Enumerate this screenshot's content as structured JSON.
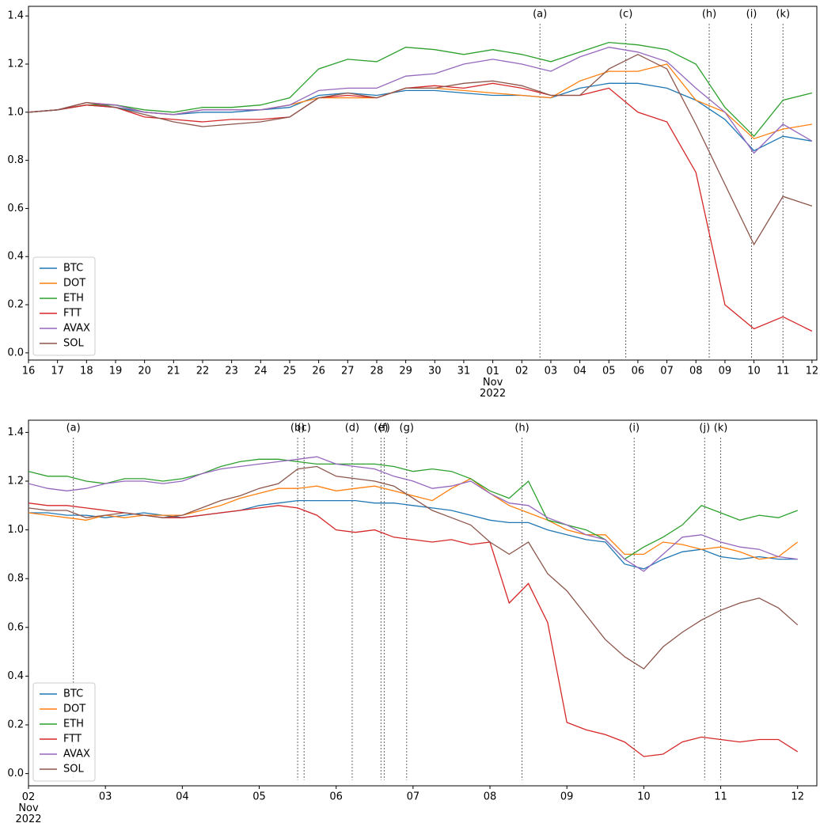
{
  "chart_data": [
    {
      "type": "line",
      "legend": "lower left",
      "x": [
        "2022-10-16",
        "2022-10-17",
        "2022-10-18",
        "2022-10-19",
        "2022-10-20",
        "2022-10-21",
        "2022-10-22",
        "2022-10-23",
        "2022-10-24",
        "2022-10-25",
        "2022-10-26",
        "2022-10-27",
        "2022-10-28",
        "2022-10-29",
        "2022-10-30",
        "2022-10-31",
        "2022-11-01",
        "2022-11-02",
        "2022-11-03",
        "2022-11-04",
        "2022-11-05",
        "2022-11-06",
        "2022-11-07",
        "2022-11-08",
        "2022-11-09",
        "2022-11-10",
        "2022-11-11",
        "2022-11-12"
      ],
      "series": [
        {
          "name": "BTC",
          "color": "#1f77b4",
          "values": [
            1.0,
            1.01,
            1.03,
            1.02,
            1.0,
            0.99,
            1.0,
            1.0,
            1.01,
            1.02,
            1.07,
            1.08,
            1.07,
            1.09,
            1.09,
            1.08,
            1.07,
            1.07,
            1.06,
            1.1,
            1.12,
            1.12,
            1.1,
            1.05,
            0.97,
            0.84,
            0.9,
            0.88
          ]
        },
        {
          "name": "DOT",
          "color": "#ff7f0e",
          "values": [
            1.0,
            1.01,
            1.04,
            1.03,
            1.0,
            0.99,
            1.01,
            1.01,
            1.01,
            1.03,
            1.06,
            1.06,
            1.06,
            1.1,
            1.1,
            1.09,
            1.08,
            1.07,
            1.06,
            1.13,
            1.17,
            1.17,
            1.2,
            1.05,
            1.0,
            0.89,
            0.93,
            0.95
          ]
        },
        {
          "name": "ETH",
          "color": "#2ca02c",
          "values": [
            1.0,
            1.01,
            1.03,
            1.03,
            1.01,
            1.0,
            1.02,
            1.02,
            1.03,
            1.06,
            1.18,
            1.22,
            1.21,
            1.27,
            1.26,
            1.24,
            1.26,
            1.24,
            1.21,
            1.25,
            1.29,
            1.28,
            1.26,
            1.2,
            1.02,
            0.9,
            1.05,
            1.08
          ]
        },
        {
          "name": "FTT",
          "color": "#d62728",
          "values": [
            1.0,
            1.01,
            1.03,
            1.02,
            0.98,
            0.97,
            0.96,
            0.97,
            0.97,
            0.98,
            1.06,
            1.07,
            1.06,
            1.1,
            1.11,
            1.1,
            1.12,
            1.1,
            1.07,
            1.07,
            1.1,
            1.0,
            0.96,
            0.75,
            0.2,
            0.1,
            0.15,
            0.09
          ]
        },
        {
          "name": "AVAX",
          "color": "#9467bd",
          "values": [
            1.0,
            1.01,
            1.04,
            1.03,
            1.0,
            0.99,
            1.01,
            1.01,
            1.01,
            1.03,
            1.09,
            1.1,
            1.1,
            1.15,
            1.16,
            1.2,
            1.22,
            1.2,
            1.17,
            1.23,
            1.27,
            1.25,
            1.21,
            1.1,
            1.0,
            0.83,
            0.95,
            0.88
          ]
        },
        {
          "name": "SOL",
          "color": "#8c564b",
          "values": [
            1.0,
            1.01,
            1.04,
            1.02,
            0.99,
            0.96,
            0.94,
            0.95,
            0.96,
            0.98,
            1.06,
            1.08,
            1.06,
            1.1,
            1.1,
            1.12,
            1.13,
            1.11,
            1.07,
            1.07,
            1.18,
            1.24,
            1.18,
            0.95,
            0.7,
            0.45,
            0.65,
            0.61
          ]
        }
      ],
      "xlim": [
        "2022-10-16 00:00",
        "2022-11-12 04:00"
      ],
      "ylim": [
        -0.03,
        1.44
      ],
      "yticks": [
        {
          "value": 0,
          "label": "0.0"
        },
        0.2,
        0.4,
        0.6,
        0.8,
        {
          "value": 1,
          "label": "1.0"
        },
        1.2,
        1.4
      ],
      "xticks": [
        {
          "value": "2022-10-16",
          "label": "16"
        },
        {
          "value": "2022-10-17",
          "label": "17"
        },
        {
          "value": "2022-10-18",
          "label": "18"
        },
        {
          "value": "2022-10-19",
          "label": "19"
        },
        {
          "value": "2022-10-20",
          "label": "20"
        },
        {
          "value": "2022-10-21",
          "label": "21"
        },
        {
          "value": "2022-10-22",
          "label": "22"
        },
        {
          "value": "2022-10-23",
          "label": "23"
        },
        {
          "value": "2022-10-24",
          "label": "24"
        },
        {
          "value": "2022-10-25",
          "label": "25"
        },
        {
          "value": "2022-10-26",
          "label": "26"
        },
        {
          "value": "2022-10-27",
          "label": "27"
        },
        {
          "value": "2022-10-28",
          "label": "28"
        },
        {
          "value": "2022-10-29",
          "label": "29"
        },
        {
          "value": "2022-10-30",
          "label": "30"
        },
        {
          "value": "2022-10-31",
          "label": "31"
        },
        {
          "value": "2022-11-01",
          "label": "01\nNov\n2022"
        },
        {
          "value": "2022-11-02",
          "label": "02"
        },
        {
          "value": "2022-11-03",
          "label": "03"
        },
        {
          "value": "2022-11-04",
          "label": "04"
        },
        {
          "value": "2022-11-05",
          "label": "05"
        },
        {
          "value": "2022-11-06",
          "label": "06"
        },
        {
          "value": "2022-11-07",
          "label": "07"
        },
        {
          "value": "2022-11-08",
          "label": "08"
        },
        {
          "value": "2022-11-09",
          "label": "09"
        },
        {
          "value": "2022-11-10",
          "label": "10"
        },
        {
          "value": "2022-11-11",
          "label": "11"
        },
        {
          "value": "2022-11-12",
          "label": "12"
        }
      ],
      "annotations": [
        {
          "label": "(a)",
          "x": "2022-11-02 15:00"
        },
        {
          "label": "(c)",
          "x": "2022-11-05 14:00"
        },
        {
          "label": "(h)",
          "x": "2022-11-08 11:00"
        },
        {
          "label": "(i)",
          "x": "2022-11-09 22:00"
        },
        {
          "label": "(k)",
          "x": "2022-11-11 00:00"
        }
      ]
    },
    {
      "type": "line",
      "legend": "lower left",
      "x": [
        "2022-11-02 00:00",
        "2022-11-02 06:00",
        "2022-11-02 12:00",
        "2022-11-02 18:00",
        "2022-11-03 00:00",
        "2022-11-03 06:00",
        "2022-11-03 12:00",
        "2022-11-03 18:00",
        "2022-11-04 00:00",
        "2022-11-04 06:00",
        "2022-11-04 12:00",
        "2022-11-04 18:00",
        "2022-11-05 00:00",
        "2022-11-05 06:00",
        "2022-11-05 12:00",
        "2022-11-05 18:00",
        "2022-11-06 00:00",
        "2022-11-06 06:00",
        "2022-11-06 12:00",
        "2022-11-06 18:00",
        "2022-11-07 00:00",
        "2022-11-07 06:00",
        "2022-11-07 12:00",
        "2022-11-07 18:00",
        "2022-11-08 00:00",
        "2022-11-08 06:00",
        "2022-11-08 12:00",
        "2022-11-08 18:00",
        "2022-11-09 00:00",
        "2022-11-09 06:00",
        "2022-11-09 12:00",
        "2022-11-09 18:00",
        "2022-11-10 00:00",
        "2022-11-10 06:00",
        "2022-11-10 12:00",
        "2022-11-10 18:00",
        "2022-11-11 00:00",
        "2022-11-11 06:00",
        "2022-11-11 12:00",
        "2022-11-11 18:00",
        "2022-11-12 00:00"
      ],
      "series": [
        {
          "name": "BTC",
          "color": "#1f77b4",
          "values": [
            1.07,
            1.07,
            1.06,
            1.06,
            1.05,
            1.06,
            1.07,
            1.06,
            1.05,
            1.06,
            1.07,
            1.08,
            1.1,
            1.11,
            1.12,
            1.12,
            1.12,
            1.12,
            1.11,
            1.11,
            1.1,
            1.09,
            1.08,
            1.06,
            1.04,
            1.03,
            1.03,
            1.0,
            0.98,
            0.96,
            0.95,
            0.86,
            0.84,
            0.88,
            0.91,
            0.92,
            0.89,
            0.88,
            0.89,
            0.88,
            0.88
          ]
        },
        {
          "name": "DOT",
          "color": "#ff7f0e",
          "values": [
            1.07,
            1.06,
            1.05,
            1.04,
            1.06,
            1.05,
            1.06,
            1.06,
            1.06,
            1.08,
            1.1,
            1.13,
            1.15,
            1.17,
            1.17,
            1.18,
            1.16,
            1.17,
            1.18,
            1.16,
            1.14,
            1.12,
            1.17,
            1.21,
            1.15,
            1.1,
            1.07,
            1.04,
            1.0,
            0.98,
            0.98,
            0.9,
            0.9,
            0.95,
            0.94,
            0.92,
            0.93,
            0.91,
            0.88,
            0.89,
            0.95
          ]
        },
        {
          "name": "ETH",
          "color": "#2ca02c",
          "values": [
            1.24,
            1.22,
            1.22,
            1.2,
            1.19,
            1.21,
            1.21,
            1.2,
            1.21,
            1.23,
            1.26,
            1.28,
            1.29,
            1.29,
            1.28,
            1.27,
            1.27,
            1.27,
            1.27,
            1.26,
            1.24,
            1.25,
            1.24,
            1.21,
            1.16,
            1.13,
            1.2,
            1.04,
            1.02,
            1.0,
            0.96,
            0.88,
            0.93,
            0.97,
            1.02,
            1.1,
            1.07,
            1.04,
            1.06,
            1.05,
            1.08
          ]
        },
        {
          "name": "FTT",
          "color": "#d62728",
          "values": [
            1.11,
            1.1,
            1.1,
            1.09,
            1.08,
            1.07,
            1.06,
            1.05,
            1.05,
            1.06,
            1.07,
            1.08,
            1.09,
            1.1,
            1.09,
            1.06,
            1.0,
            0.99,
            1.0,
            0.97,
            0.96,
            0.95,
            0.96,
            0.94,
            0.95,
            0.7,
            0.78,
            0.62,
            0.21,
            0.18,
            0.16,
            0.13,
            0.07,
            0.08,
            0.13,
            0.15,
            0.14,
            0.13,
            0.14,
            0.14,
            0.09
          ]
        },
        {
          "name": "AVAX",
          "color": "#9467bd",
          "values": [
            1.19,
            1.17,
            1.16,
            1.17,
            1.19,
            1.2,
            1.2,
            1.19,
            1.2,
            1.23,
            1.25,
            1.26,
            1.27,
            1.28,
            1.29,
            1.3,
            1.27,
            1.26,
            1.25,
            1.22,
            1.2,
            1.17,
            1.18,
            1.2,
            1.15,
            1.11,
            1.1,
            1.05,
            1.02,
            0.98,
            0.96,
            0.88,
            0.83,
            0.9,
            0.97,
            0.98,
            0.95,
            0.93,
            0.92,
            0.89,
            0.88
          ]
        },
        {
          "name": "SOL",
          "color": "#8c564b",
          "values": [
            1.09,
            1.08,
            1.08,
            1.05,
            1.06,
            1.07,
            1.06,
            1.05,
            1.06,
            1.09,
            1.12,
            1.14,
            1.17,
            1.19,
            1.25,
            1.26,
            1.22,
            1.21,
            1.2,
            1.18,
            1.13,
            1.08,
            1.05,
            1.02,
            0.95,
            0.9,
            0.95,
            0.82,
            0.75,
            0.65,
            0.55,
            0.48,
            0.43,
            0.52,
            0.58,
            0.63,
            0.67,
            0.7,
            0.72,
            0.68,
            0.61
          ]
        }
      ],
      "xlim": [
        "2022-11-02 00:00",
        "2022-11-12 06:00"
      ],
      "ylim": [
        -0.05,
        1.45
      ],
      "yticks": [
        {
          "value": 0,
          "label": "0.0"
        },
        0.2,
        0.4,
        0.6,
        0.8,
        {
          "value": 1,
          "label": "1.0"
        },
        1.2,
        1.4
      ],
      "xticks": [
        {
          "value": "2022-11-02",
          "label": "02\nNov\n2022"
        },
        {
          "value": "2022-11-03",
          "label": "03"
        },
        {
          "value": "2022-11-04",
          "label": "04"
        },
        {
          "value": "2022-11-05",
          "label": "05"
        },
        {
          "value": "2022-11-06",
          "label": "06"
        },
        {
          "value": "2022-11-07",
          "label": "07"
        },
        {
          "value": "2022-11-08",
          "label": "08"
        },
        {
          "value": "2022-11-09",
          "label": "09"
        },
        {
          "value": "2022-11-10",
          "label": "10"
        },
        {
          "value": "2022-11-11",
          "label": "11"
        },
        {
          "value": "2022-11-12",
          "label": "12"
        }
      ],
      "annotations": [
        {
          "label": "(a)",
          "x": "2022-11-02 14:00"
        },
        {
          "label": "(b)",
          "x": "2022-11-05 12:00"
        },
        {
          "label": "(c)",
          "x": "2022-11-05 14:00"
        },
        {
          "label": "(d)",
          "x": "2022-11-06 05:00"
        },
        {
          "label": "(e)",
          "x": "2022-11-06 14:00"
        },
        {
          "label": "(f)",
          "x": "2022-11-06 15:00"
        },
        {
          "label": "(g)",
          "x": "2022-11-06 22:00"
        },
        {
          "label": "(h)",
          "x": "2022-11-08 10:00"
        },
        {
          "label": "(i)",
          "x": "2022-11-09 21:00"
        },
        {
          "label": "(j)",
          "x": "2022-11-10 19:00"
        },
        {
          "label": "(k)",
          "x": "2022-11-11 00:00"
        }
      ]
    }
  ]
}
